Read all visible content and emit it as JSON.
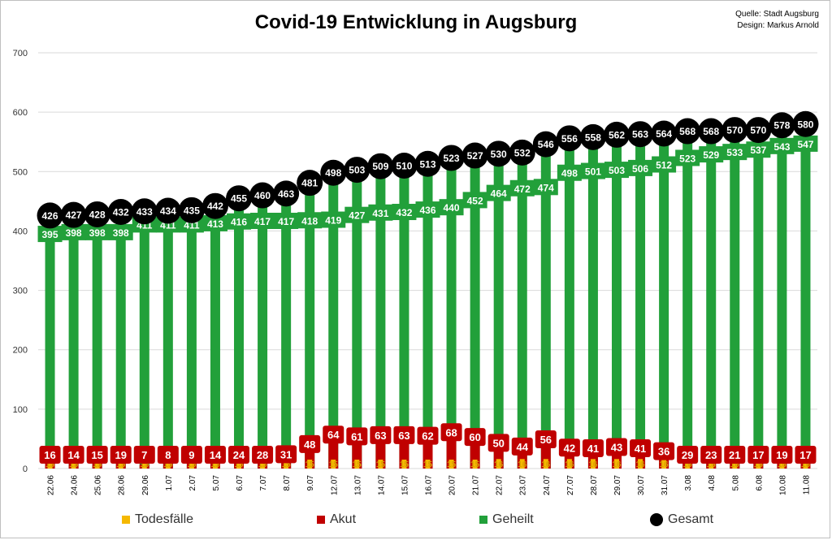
{
  "chart_data": {
    "type": "bar",
    "title": "Covid-19 Entwicklung in Augsburg",
    "source": "Quelle: Stadt Augsburg",
    "design": "Design: Markus Arnold",
    "ylim": [
      0,
      700
    ],
    "yticks": [
      0,
      100,
      200,
      300,
      400,
      500,
      600,
      700
    ],
    "grid": "vertical",
    "legend_position": "bottom",
    "categories": [
      "22.06",
      "24.06",
      "25.06",
      "28.06",
      "29.06",
      "1.07",
      "2.07",
      "5.07",
      "6.07",
      "7.07",
      "8.07",
      "9.07",
      "12.07",
      "13.07",
      "14.07",
      "15.07",
      "16.07",
      "20.07",
      "21.07",
      "22.07",
      "23.07",
      "24.07",
      "27.07",
      "28.07",
      "29.07",
      "30.07",
      "31.07",
      "3.08",
      "4.08",
      "5.08",
      "6.08",
      "10.08",
      "11.08"
    ],
    "series": [
      {
        "name": "Todesfälle",
        "color": "#F5B800",
        "values": [
          15,
          15,
          15,
          15,
          15,
          15,
          15,
          15,
          15,
          15,
          15,
          15,
          15,
          15,
          15,
          15,
          15,
          15,
          15,
          16,
          16,
          16,
          16,
          16,
          16,
          16,
          16,
          16,
          16,
          16,
          16,
          16,
          16
        ]
      },
      {
        "name": "Akut",
        "color": "#C00000",
        "values": [
          16,
          14,
          15,
          19,
          7,
          8,
          9,
          14,
          24,
          28,
          31,
          48,
          64,
          61,
          63,
          63,
          62,
          68,
          60,
          50,
          44,
          56,
          42,
          41,
          43,
          41,
          36,
          29,
          23,
          21,
          17,
          19,
          17
        ]
      },
      {
        "name": "Geheilt",
        "color": "#22A03A",
        "values": [
          395,
          398,
          398,
          398,
          411,
          411,
          411,
          413,
          416,
          417,
          417,
          418,
          419,
          427,
          431,
          432,
          436,
          440,
          452,
          464,
          472,
          474,
          498,
          501,
          503,
          506,
          512,
          523,
          529,
          533,
          537,
          543,
          547
        ]
      },
      {
        "name": "Gesamt",
        "color": "#000000",
        "values": [
          426,
          427,
          428,
          432,
          433,
          434,
          435,
          442,
          455,
          460,
          463,
          481,
          498,
          503,
          509,
          510,
          513,
          523,
          527,
          530,
          532,
          546,
          556,
          558,
          562,
          563,
          564,
          568,
          568,
          570,
          570,
          578,
          580
        ]
      }
    ]
  }
}
